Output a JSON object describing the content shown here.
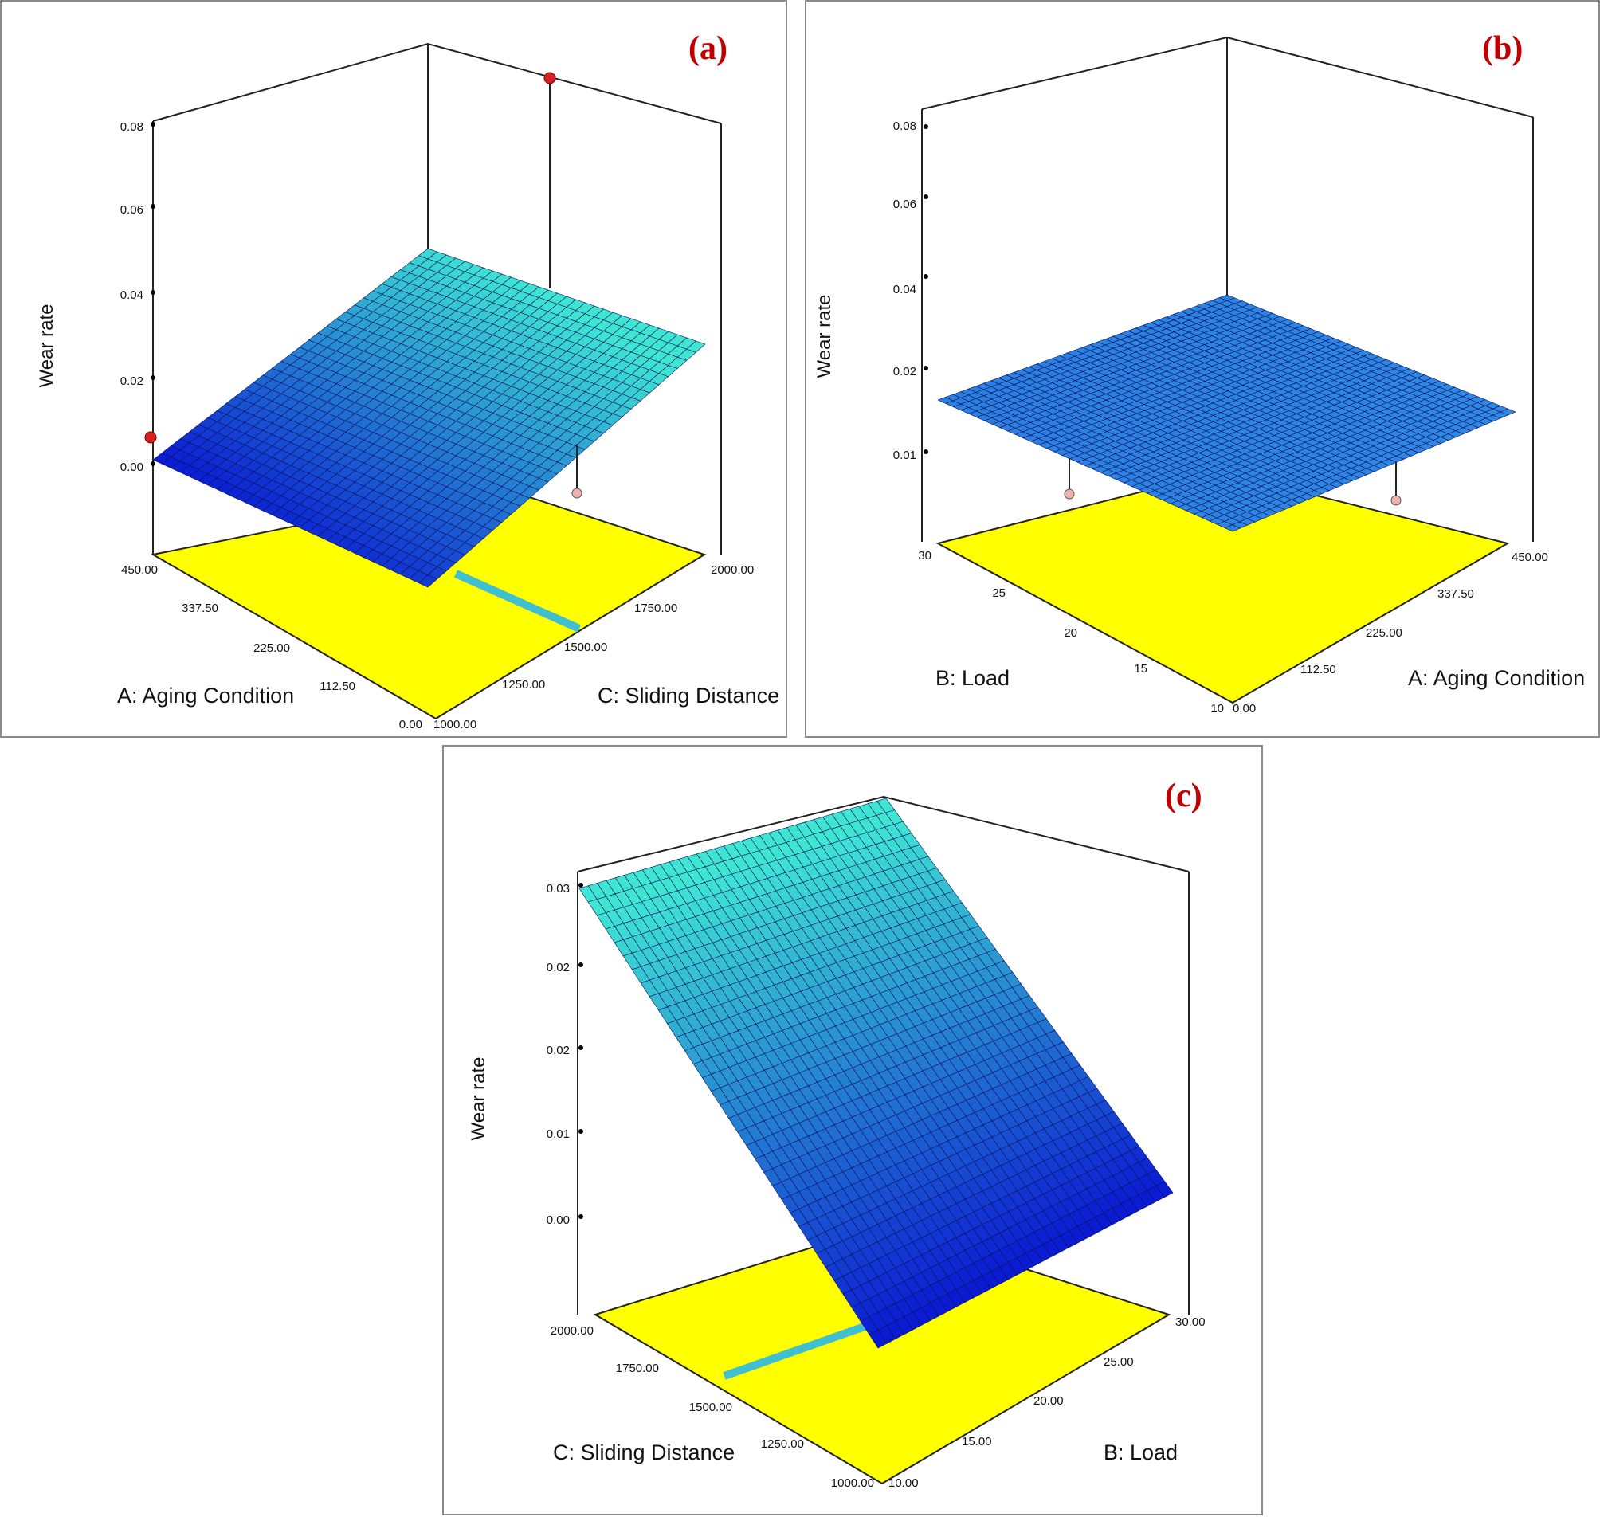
{
  "chart_data": [
    {
      "type": "surface",
      "panel_label": "(a)",
      "zlabel": "Wear rate",
      "xlabel": "A: Aging Condition",
      "ylabel": "C: Sliding Distance",
      "x_ticks": [
        "450.00",
        "337.50",
        "225.00",
        "112.50",
        "0.00"
      ],
      "y_ticks": [
        "1000.00",
        "1250.00",
        "1500.00",
        "1750.00",
        "2000.00"
      ],
      "z_ticks": [
        "0.00",
        "0.02",
        "0.04",
        "0.06",
        "0.08"
      ],
      "xlim": [
        0,
        450
      ],
      "ylim": [
        1000,
        2000
      ],
      "zlim": [
        0,
        0.08
      ],
      "surface_corners": {
        "x0_y1000": 0.0,
        "x450_y1000": 0.006,
        "x0_y2000": 0.028,
        "x450_y2000": 0.045
      },
      "design_points": [
        {
          "x": 450,
          "y": 1000,
          "z": 0.006
        },
        {
          "x": 0,
          "y": 2000,
          "z": 0.078
        }
      ],
      "colors": {
        "floor": "#ffff00",
        "surface_low": "#0a18d2",
        "surface_high": "#3ee6d2",
        "point": "#d42020"
      }
    },
    {
      "type": "surface",
      "panel_label": "(b)",
      "zlabel": "Wear rate",
      "xlabel": "B: Load",
      "ylabel": "A: Aging Condition",
      "x_ticks": [
        "30",
        "25",
        "20",
        "15",
        "10"
      ],
      "y_ticks": [
        "0.00",
        "112.50",
        "225.00",
        "337.50",
        "450.00"
      ],
      "z_ticks": [
        "0.01",
        "0.02",
        "0.04",
        "0.06",
        "0.08"
      ],
      "xlim": [
        10,
        30
      ],
      "ylim": [
        0,
        450
      ],
      "zlim": [
        0,
        0.08
      ],
      "surface_corners": {
        "x10_y0": 0.018,
        "x30_y0": 0.018,
        "x10_y450": 0.018,
        "x30_y450": 0.018
      },
      "colors": {
        "floor": "#ffff00",
        "surface": "#2a7fe0",
        "point": "#f0b0b0"
      }
    },
    {
      "type": "surface",
      "panel_label": "(c)",
      "zlabel": "Wear rate",
      "xlabel": "C: Sliding Distance",
      "ylabel": "B: Load",
      "x_ticks": [
        "2000.00",
        "1750.00",
        "1500.00",
        "1250.00",
        "1000.00"
      ],
      "y_ticks": [
        "10.00",
        "15.00",
        "20.00",
        "25.00",
        "30.00"
      ],
      "z_ticks": [
        "0.00",
        "0.01",
        "0.02",
        "0.02",
        "0.03"
      ],
      "xlim": [
        1000,
        2000
      ],
      "ylim": [
        10,
        30
      ],
      "zlim": [
        0,
        0.03
      ],
      "surface_corners": {
        "x1000_y10": 0.0,
        "x2000_y10": 0.03,
        "x1000_y30": 0.002,
        "x2000_y30": 0.034
      },
      "colors": {
        "floor": "#ffff00",
        "surface_low": "#0a18d2",
        "surface_high": "#3ee6d2"
      }
    }
  ]
}
